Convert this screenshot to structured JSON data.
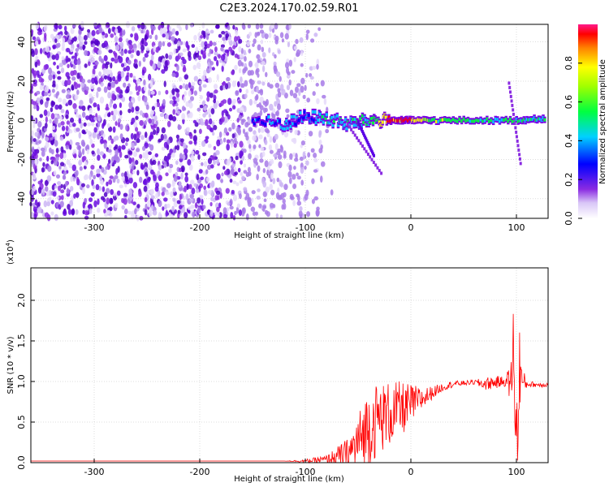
{
  "figure": {
    "title": "C2E3.2024.170.02.59.R01"
  },
  "chart_data": [
    {
      "type": "heatmap",
      "title": "C2E3.2024.170.02.59.R01",
      "xlabel": "Height of straight line (km)",
      "ylabel": "Frequency (Hz)",
      "xlim": [
        -360,
        130
      ],
      "ylim": [
        -50,
        49
      ],
      "xticks": [
        -300,
        -200,
        -100,
        0,
        100
      ],
      "yticks": [
        -40,
        -20,
        0,
        20,
        40
      ],
      "colorbar": {
        "label": "Normalized spectral amplitude",
        "range": [
          0,
          1
        ],
        "ticks": [
          0.0,
          0.2,
          0.4,
          0.6,
          0.8
        ],
        "colormap": [
          "#ffffff",
          "#cbb4f5",
          "#8a2be2",
          "#5a00e6",
          "#0000ff",
          "#00c8ff",
          "#00ff80",
          "#40ff00",
          "#ffff00",
          "#ff8000",
          "#ff0000",
          "#ff1a8c"
        ]
      },
      "signal_band": [
        {
          "x": -150,
          "y": 0,
          "amp": 0.25
        },
        {
          "x": -120,
          "y": -2,
          "amp": 0.35
        },
        {
          "x": -100,
          "y": 2,
          "amp": 0.3
        },
        {
          "x": -80,
          "y": 1,
          "amp": 0.45
        },
        {
          "x": -60,
          "y": -2,
          "amp": 0.4
        },
        {
          "x": -40,
          "y": 0,
          "amp": 0.45
        },
        {
          "x": -20,
          "y": 0,
          "amp": 0.9
        },
        {
          "x": 0,
          "y": 0,
          "amp": 0.9
        },
        {
          "x": 20,
          "y": 0,
          "amp": 0.55
        },
        {
          "x": 60,
          "y": 0,
          "amp": 0.45
        },
        {
          "x": 100,
          "y": 0,
          "amp": 0.5
        },
        {
          "x": 128,
          "y": 1,
          "amp": 0.4
        }
      ],
      "colors": {
        "grid": "#bbbbbb"
      }
    },
    {
      "type": "line",
      "xlabel": "Height of straight line (km)",
      "ylabel": "SNR (10 * v/v)",
      "yscale_label": "(x10",
      "yscale_exp": "4",
      "xlim": [
        -360,
        130
      ],
      "ylim": [
        0,
        2.4
      ],
      "xticks": [
        -300,
        -200,
        -100,
        0,
        100
      ],
      "yticks": [
        0.0,
        0.5,
        1.0,
        1.5,
        2.0
      ],
      "series": [
        {
          "color": "#ff0000",
          "x": [
            -360,
            -300,
            -200,
            -120,
            -100,
            -80,
            -60,
            -50,
            -40,
            -30,
            -20,
            -10,
            0,
            10,
            20,
            30,
            40,
            50,
            60,
            70,
            80,
            90,
            95,
            98,
            100,
            103,
            106,
            110,
            120,
            130
          ],
          "y": [
            0.02,
            0.02,
            0.02,
            0.02,
            0.02,
            0.04,
            0.1,
            0.25,
            0.45,
            0.55,
            0.6,
            0.65,
            0.72,
            0.78,
            0.86,
            0.93,
            0.97,
            0.98,
            0.99,
            0.97,
            0.99,
            1.0,
            1.0,
            1.5,
            0.0,
            1.2,
            0.97,
            0.97,
            0.96,
            0.96
          ],
          "noise": [
            0,
            0,
            0,
            0,
            0.02,
            0.05,
            0.2,
            0.35,
            0.5,
            0.45,
            0.4,
            0.35,
            0.25,
            0.15,
            0.08,
            0.05,
            0.04,
            0.03,
            0.03,
            0.08,
            0.08,
            0.06,
            0.3,
            0.8,
            0.9,
            0.5,
            0.2,
            0.04,
            0.03,
            0.03
          ]
        }
      ],
      "colors": {
        "grid": "#bbbbbb"
      }
    }
  ]
}
